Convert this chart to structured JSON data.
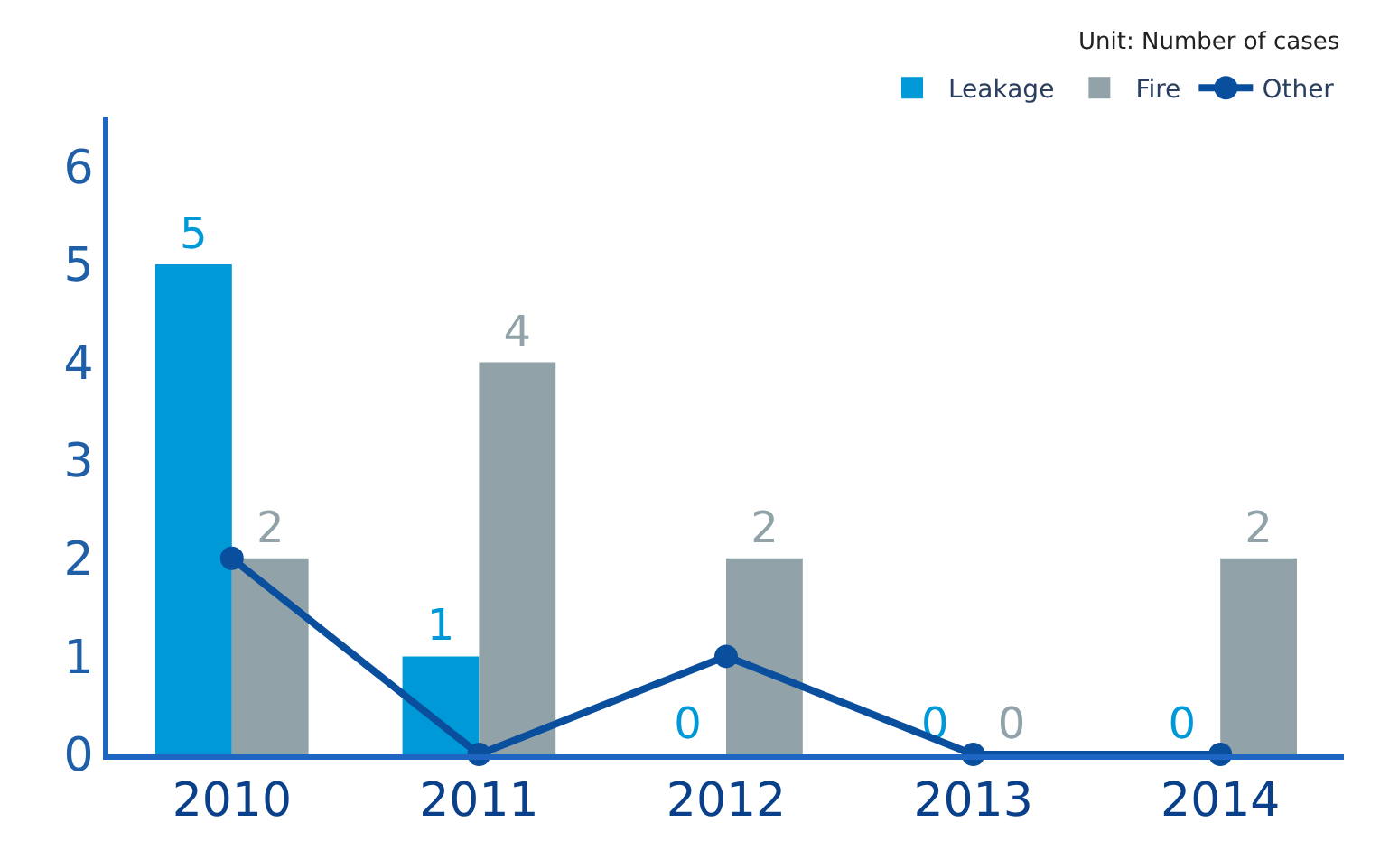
{
  "chart_data": {
    "type": "bar",
    "categories": [
      "2010",
      "2011",
      "2012",
      "2013",
      "2014"
    ],
    "series": [
      {
        "name": "Leakage",
        "color": "#0099d8",
        "values": [
          5,
          1,
          0,
          0,
          0
        ],
        "value_labels": [
          "5",
          "1",
          "0",
          "0",
          "0"
        ]
      },
      {
        "name": "Fire",
        "color": "#91a3a8",
        "values": [
          2,
          4,
          2,
          0,
          2
        ],
        "value_labels": [
          "2",
          "4",
          "2",
          "0",
          "2"
        ]
      },
      {
        "name": "Other",
        "type": "line",
        "color": "#0a4f9e",
        "values": [
          2,
          0,
          1,
          0,
          0
        ],
        "marker": "circle"
      }
    ],
    "ylim": [
      0,
      6.5
    ],
    "yticks": [
      0,
      1,
      2,
      3,
      4,
      5,
      6
    ],
    "legend": "top right",
    "annotations": [
      "Unit: Number of cases"
    ]
  }
}
